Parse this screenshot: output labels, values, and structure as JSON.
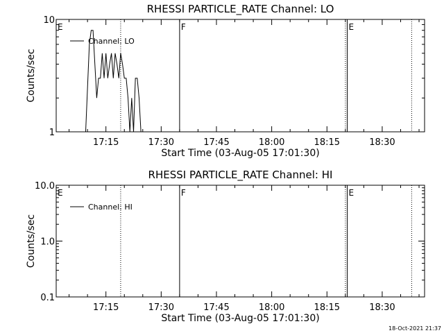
{
  "chart_data": [
    {
      "type": "line",
      "title": "RHESSI PARTICLE_RATE Channel: LO",
      "xlabel": "Start Time (03-Aug-05 17:01:30)",
      "ylabel": "Counts/sec",
      "y_scale": "log",
      "ylim": [
        1,
        10
      ],
      "xlim": [
        "17:01:30",
        "18:41:30"
      ],
      "x_ticks": [
        "17:15",
        "17:30",
        "17:45",
        "18:00",
        "18:15",
        "18:30"
      ],
      "y_ticks": [
        "1",
        "10"
      ],
      "legend": {
        "label": "Channel: LO",
        "placement": "top-left"
      },
      "markers": [
        {
          "time": "17:01:30",
          "label": "E",
          "style": "solid"
        },
        {
          "time": "17:19:00",
          "label": "",
          "style": "dotted"
        },
        {
          "time": "17:35:00",
          "label": "F",
          "style": "solid"
        },
        {
          "time": "18:20:00",
          "label": "",
          "style": "dotted"
        },
        {
          "time": "18:20:30",
          "label": "E",
          "style": "solid"
        },
        {
          "time": "18:38:00",
          "label": "",
          "style": "dotted"
        }
      ],
      "series": [
        {
          "name": "Channel: LO",
          "x": [
            "17:09:30",
            "17:10:30",
            "17:11:00",
            "17:11:30",
            "17:12:00",
            "17:12:30",
            "17:13:00",
            "17:13:30",
            "17:14:00",
            "17:14:30",
            "17:15:00",
            "17:15:30",
            "17:16:00",
            "17:16:30",
            "17:17:00",
            "17:17:30",
            "17:18:00",
            "17:18:30",
            "17:19:00",
            "17:19:30",
            "17:20:00",
            "17:20:30",
            "17:21:00",
            "17:21:30",
            "17:22:00",
            "17:22:30",
            "17:23:00",
            "17:23:30",
            "17:24:00",
            "17:24:30",
            "17:25:00",
            "17:25:30",
            "17:26:00",
            "17:26:30",
            "17:27:00"
          ],
          "y": [
            1,
            6,
            8,
            8,
            4,
            2,
            3,
            3,
            5,
            3,
            5,
            3,
            4,
            5,
            3,
            5,
            4,
            3,
            5,
            4,
            3,
            3,
            2,
            1,
            2,
            1,
            3,
            3,
            2,
            1,
            1,
            1,
            1,
            1,
            1
          ]
        }
      ]
    },
    {
      "type": "line",
      "title": "RHESSI PARTICLE_RATE Channel: HI",
      "xlabel": "Start Time (03-Aug-05 17:01:30)",
      "ylabel": "Counts/sec",
      "y_scale": "log",
      "ylim": [
        0.1,
        10
      ],
      "xlim": [
        "17:01:30",
        "18:41:30"
      ],
      "x_ticks": [
        "17:15",
        "17:30",
        "17:45",
        "18:00",
        "18:15",
        "18:30"
      ],
      "y_ticks": [
        "0.1",
        "1.0",
        "10.0"
      ],
      "legend": {
        "label": "Channel: HI",
        "placement": "top-left"
      },
      "markers": [
        {
          "time": "17:01:30",
          "label": "E",
          "style": "solid"
        },
        {
          "time": "17:19:00",
          "label": "",
          "style": "dotted"
        },
        {
          "time": "17:35:00",
          "label": "F",
          "style": "solid"
        },
        {
          "time": "18:20:00",
          "label": "",
          "style": "dotted"
        },
        {
          "time": "18:20:30",
          "label": "E",
          "style": "solid"
        },
        {
          "time": "18:38:00",
          "label": "",
          "style": "dotted"
        }
      ],
      "series": []
    }
  ],
  "footer": {
    "timestamp": "18-Oct-2021 21:37"
  }
}
